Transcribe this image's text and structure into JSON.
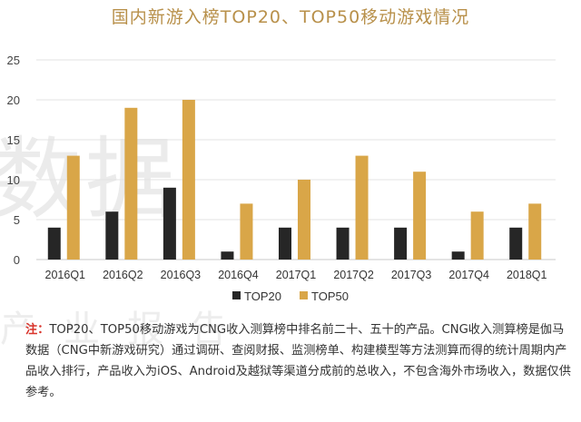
{
  "title": "国内新游入榜TOP20、TOP50移动游戏情况",
  "watermark": {
    "main": "数据",
    "sub": "产业报告"
  },
  "colors": {
    "top20": "#262626",
    "top50": "#d9a648",
    "title": "#b8904a",
    "note_lead": "#d9342b"
  },
  "chart_data": {
    "type": "bar",
    "title": "国内新游入榜TOP20、TOP50移动游戏情况",
    "categories": [
      "2016Q1",
      "2016Q2",
      "2016Q3",
      "2016Q4",
      "2017Q1",
      "2017Q2",
      "2017Q3",
      "2017Q4",
      "2018Q1"
    ],
    "series": [
      {
        "name": "TOP20",
        "values": [
          4,
          6,
          9,
          1,
          4,
          4,
          4,
          1,
          4
        ]
      },
      {
        "name": "TOP50",
        "values": [
          13,
          19,
          20,
          7,
          10,
          13,
          11,
          6,
          7
        ]
      }
    ],
    "ylim": [
      0,
      25
    ],
    "yticks": [
      0,
      5,
      10,
      15,
      20,
      25
    ],
    "grid": true,
    "legend": "bottom"
  },
  "note": {
    "lead": "注：",
    "text": "TOP20、TOP50移动游戏为CNG收入测算榜中排名前二十、五十的产品。CNG收入测算榜是伽马数据（CNG中新游戏研究）通过调研、查阅财报、监测榜单、构建模型等方法测算而得的统计周期内产品收入排行，产品收入为iOS、Android及越狱等渠道分成前的总收入，不包含海外市场收入，数据仅供参考。"
  }
}
